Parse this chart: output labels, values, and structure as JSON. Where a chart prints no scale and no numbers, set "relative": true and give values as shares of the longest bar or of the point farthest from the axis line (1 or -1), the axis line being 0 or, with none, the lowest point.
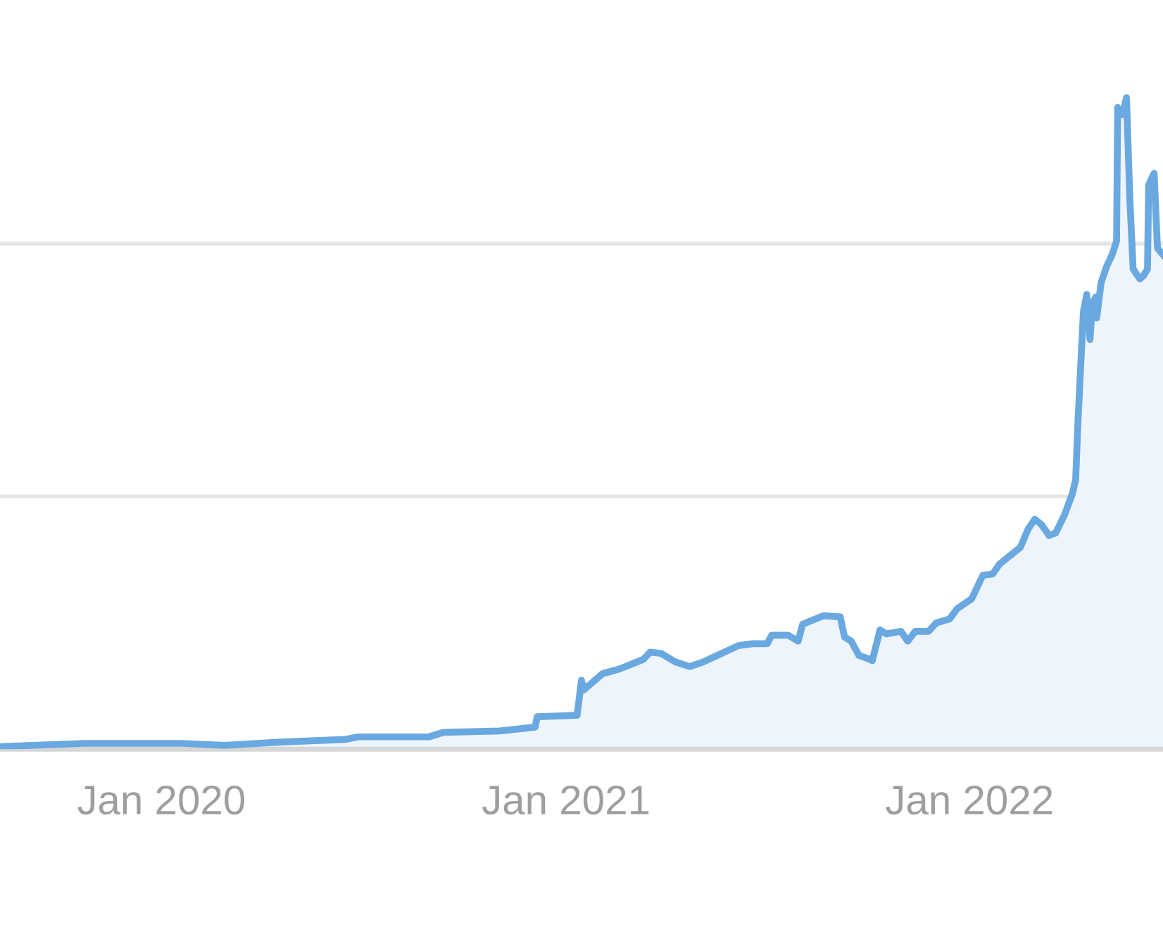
{
  "chart_data": {
    "type": "area",
    "relative": true,
    "tick_labels": "x",
    "ref_lines": [
      {
        "axis": "y",
        "value": 0.388,
        "color": "#e6e6e6"
      },
      {
        "axis": "y",
        "value": 0.776,
        "color": "#e6e6e6"
      }
    ],
    "xlim": [
      "2019-08-08",
      "2022-06-25"
    ],
    "xticks": [
      {
        "value": "2020-01-01",
        "label": "Jan 2020"
      },
      {
        "value": "2021-01-01",
        "label": "Jan 2021"
      },
      {
        "value": "2022-01-01",
        "label": "Jan 2022"
      }
    ],
    "series": [
      {
        "color": "#6aa8e0",
        "x": [
          "2019-08-08",
          "2019-10-23",
          "2020-01-20",
          "2020-02-27",
          "2020-04-18",
          "2020-06-15",
          "2020-06-27",
          "2020-08-30",
          "2020-09-12",
          "2020-11-02",
          "2020-12-04",
          "2020-12-06",
          "2021-01-11",
          "2021-01-15",
          "2021-01-17",
          "2021-02-03",
          "2021-02-18",
          "2021-03-12",
          "2021-03-18",
          "2021-03-28",
          "2021-04-10",
          "2021-04-23",
          "2021-05-05",
          "2021-06-06",
          "2021-06-19",
          "2021-07-02",
          "2021-07-06",
          "2021-07-21",
          "2021-07-30",
          "2021-08-03",
          "2021-08-22",
          "2021-09-06",
          "2021-09-10",
          "2021-09-16",
          "2021-09-23",
          "2021-10-03",
          "2021-10-05",
          "2021-10-12",
          "2021-10-18",
          "2021-10-31",
          "2021-11-06",
          "2021-11-13",
          "2021-11-25",
          "2021-12-02",
          "2021-12-14",
          "2021-12-21",
          "2022-01-03",
          "2022-01-13",
          "2022-01-22",
          "2022-01-28",
          "2022-02-16",
          "2022-02-23",
          "2022-03-01",
          "2022-03-07",
          "2022-03-14",
          "2022-03-20",
          "2022-03-28",
          "2022-04-04",
          "2022-04-07",
          "2022-04-09",
          "2022-04-14",
          "2022-04-17",
          "2022-04-20",
          "2022-04-22",
          "2022-04-25",
          "2022-04-26",
          "2022-04-30",
          "2022-05-05",
          "2022-05-10",
          "2022-05-14",
          "2022-05-15",
          "2022-05-19",
          "2022-05-23",
          "2022-05-26",
          "2022-05-29",
          "2022-06-04",
          "2022-06-07",
          "2022-06-11",
          "2022-06-12",
          "2022-06-15",
          "2022-06-17",
          "2022-06-20",
          "2022-06-25"
        ],
        "values": [
          0.004,
          0.009,
          0.009,
          0.006,
          0.011,
          0.015,
          0.019,
          0.019,
          0.026,
          0.028,
          0.034,
          0.05,
          0.052,
          0.106,
          0.091,
          0.116,
          0.123,
          0.138,
          0.149,
          0.147,
          0.134,
          0.127,
          0.134,
          0.159,
          0.162,
          0.162,
          0.175,
          0.175,
          0.166,
          0.192,
          0.205,
          0.203,
          0.172,
          0.166,
          0.144,
          0.138,
          0.136,
          0.183,
          0.177,
          0.181,
          0.166,
          0.181,
          0.181,
          0.194,
          0.2,
          0.216,
          0.231,
          0.267,
          0.269,
          0.284,
          0.31,
          0.338,
          0.353,
          0.345,
          0.328,
          0.332,
          0.36,
          0.392,
          0.414,
          0.5,
          0.672,
          0.698,
          0.629,
          0.683,
          0.694,
          0.662,
          0.716,
          0.741,
          0.759,
          0.78,
          0.985,
          0.974,
          1,
          0.845,
          0.737,
          0.722,
          0.726,
          0.737,
          0.866,
          0.877,
          0.884,
          0.769,
          0.759
        ]
      }
    ]
  }
}
